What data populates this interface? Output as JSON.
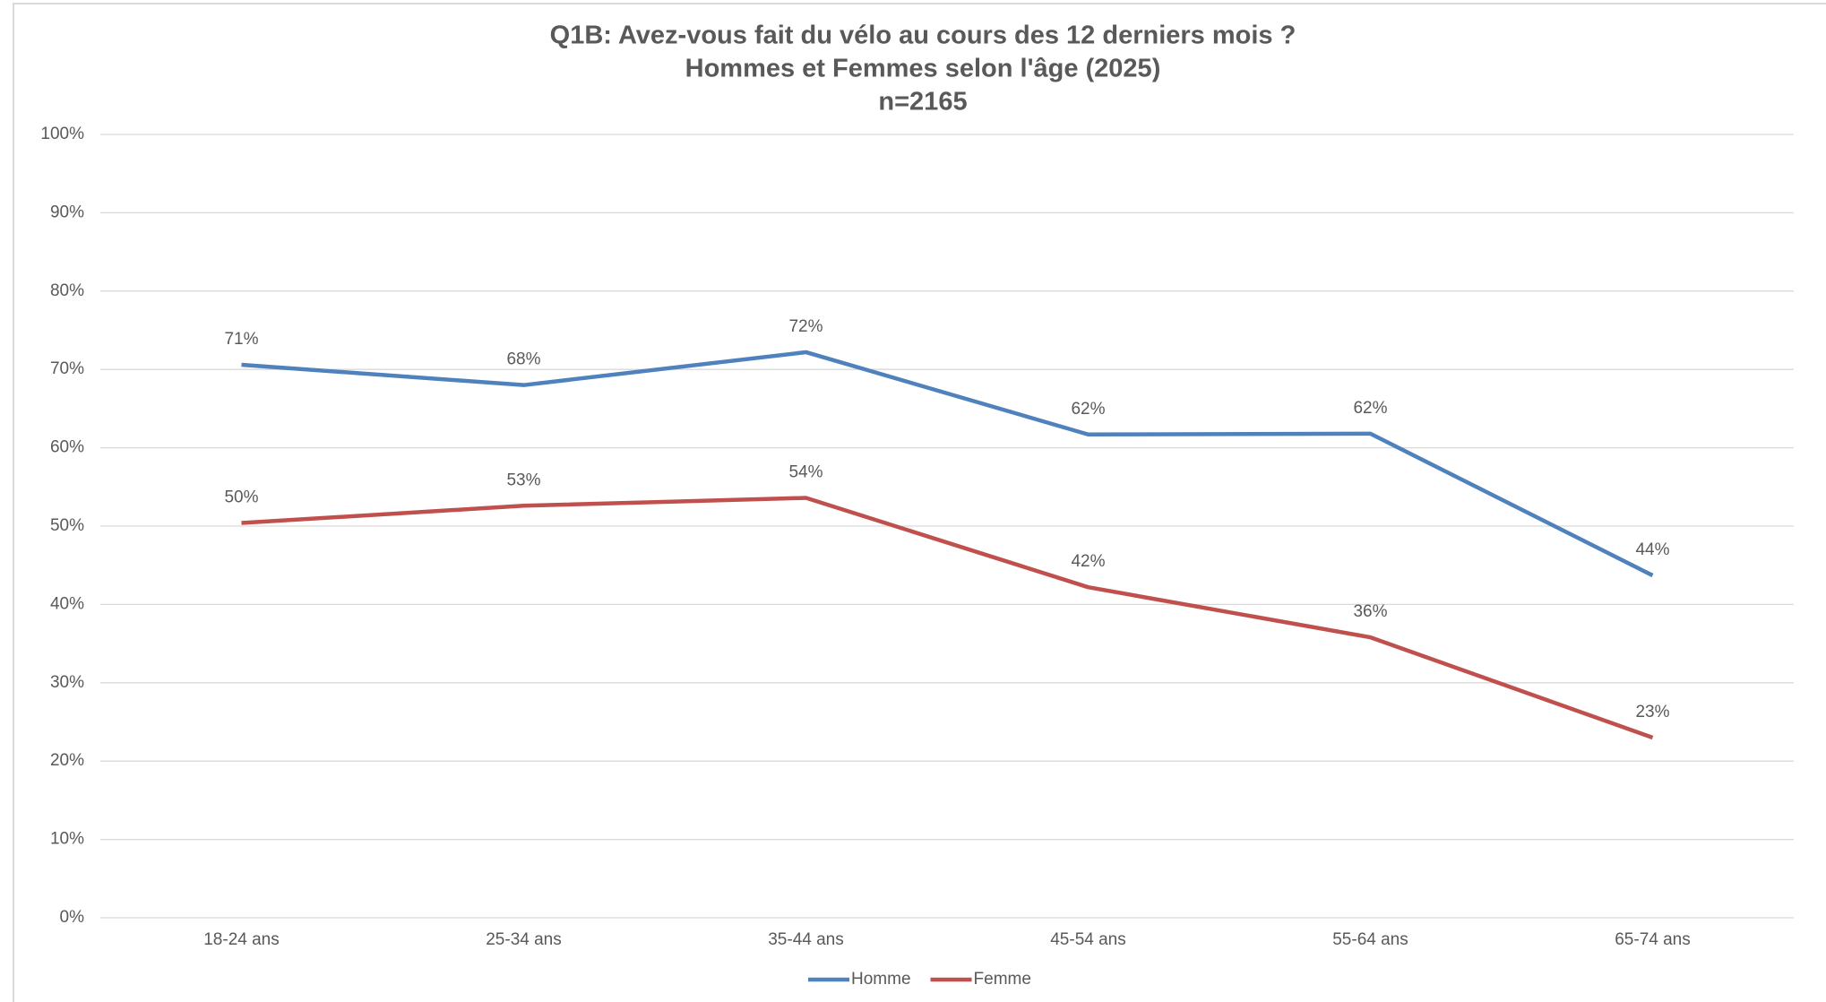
{
  "chart_data": {
    "type": "line",
    "title": [
      "Q1B: Avez-vous fait du vélo au cours des 12 derniers mois ?",
      "Hommes  et Femmes  selon l'âge (2025)",
      "n=2165"
    ],
    "categories": [
      "18-24 ans",
      "25-34 ans",
      "35-44 ans",
      "45-54 ans",
      "55-64 ans",
      "65-74 ans"
    ],
    "series": [
      {
        "name": "Homme",
        "color": "#4f81bd",
        "values": [
          70.6,
          68.0,
          72.2,
          61.7,
          61.8,
          43.7
        ],
        "value_labels": [
          "71%",
          "68%",
          "72%",
          "62%",
          "62%",
          "44%"
        ]
      },
      {
        "name": "Femme",
        "color": "#c0504d",
        "values": [
          50.4,
          52.6,
          53.6,
          42.2,
          35.8,
          23.0
        ],
        "value_labels": [
          "50%",
          "53%",
          "54%",
          "42%",
          "36%",
          "23%"
        ]
      }
    ],
    "ylim": [
      0,
      100
    ],
    "yticks": [
      {
        "value": 0,
        "label": "0%"
      },
      {
        "value": 10,
        "label": "10%"
      },
      {
        "value": 20,
        "label": "20%"
      },
      {
        "value": 30,
        "label": "30%"
      },
      {
        "value": 40,
        "label": "40%"
      },
      {
        "value": 50,
        "label": "50%"
      },
      {
        "value": 60,
        "label": "60%"
      },
      {
        "value": 70,
        "label": "70%"
      },
      {
        "value": 80,
        "label": "80%"
      },
      {
        "value": 90,
        "label": "90%"
      },
      {
        "value": 100,
        "label": "100%"
      }
    ],
    "grid": true,
    "legend": "bottom"
  }
}
